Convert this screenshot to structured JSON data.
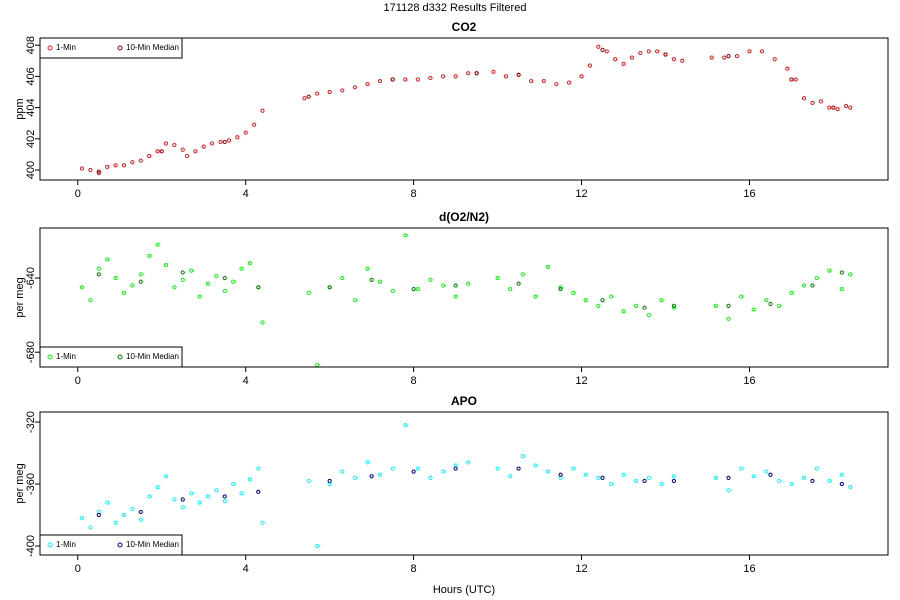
{
  "title": "171128   d332   Results Filtered",
  "chart_data": [
    {
      "type": "scatter",
      "title": "CO2",
      "ylabel": "ppm",
      "legend": "topleft",
      "xlim": [
        -0.9,
        19.3
      ],
      "xticks": [
        0,
        4,
        8,
        12,
        16
      ],
      "ylim": [
        399.36,
        408.46
      ],
      "yticks": [
        400,
        402,
        404,
        406,
        408
      ],
      "series": [
        {
          "name": "1-Min",
          "color": "#e41a1c",
          "x": [
            0.1,
            0.3,
            0.5,
            0.7,
            0.9,
            1.1,
            1.3,
            1.5,
            1.7,
            1.9,
            2.1,
            2.3,
            2.5,
            2.6,
            2.8,
            3.0,
            3.2,
            3.4,
            3.6,
            3.8,
            4.0,
            4.2,
            4.4,
            5.4,
            5.7,
            6.0,
            6.3,
            6.6,
            6.9,
            7.2,
            7.5,
            7.8,
            8.1,
            8.4,
            8.7,
            9.0,
            9.3,
            9.5,
            9.9,
            10.2,
            10.5,
            10.8,
            11.1,
            11.4,
            11.7,
            12.0,
            12.2,
            12.4,
            12.6,
            12.8,
            13.0,
            13.2,
            13.4,
            13.6,
            13.8,
            14.0,
            14.2,
            14.4,
            15.1,
            15.4,
            15.7,
            16.0,
            16.3,
            16.6,
            16.9,
            17.1,
            17.3,
            17.5,
            17.7,
            17.9,
            18.1,
            18.3,
            18.4
          ],
          "values": [
            400.1,
            400.0,
            399.8,
            400.2,
            400.3,
            400.3,
            400.5,
            400.6,
            400.9,
            401.2,
            401.7,
            401.6,
            401.3,
            400.9,
            401.2,
            401.5,
            401.7,
            401.8,
            401.9,
            402.1,
            402.4,
            402.9,
            403.8,
            404.6,
            404.9,
            405.0,
            405.1,
            405.3,
            405.5,
            405.7,
            405.8,
            405.8,
            405.8,
            405.9,
            406.0,
            406.0,
            406.2,
            406.2,
            406.3,
            406.0,
            406.1,
            405.7,
            405.7,
            405.5,
            405.6,
            406.0,
            406.7,
            407.9,
            407.6,
            407.1,
            406.8,
            407.2,
            407.5,
            407.6,
            407.6,
            407.4,
            407.1,
            407.0,
            407.2,
            407.2,
            407.3,
            407.6,
            407.6,
            407.1,
            406.5,
            405.8,
            404.6,
            404.3,
            404.4,
            404.0,
            403.9,
            404.1,
            404.0
          ]
        },
        {
          "name": "10-Min Median",
          "color": "#a00000",
          "x": [
            0.5,
            2.0,
            3.5,
            5.5,
            7.5,
            9.5,
            10.5,
            12.5,
            14,
            15.5,
            17,
            18
          ],
          "values": [
            399.9,
            401.2,
            401.8,
            404.7,
            405.8,
            406.2,
            406.1,
            407.7,
            407.4,
            407.3,
            405.8,
            404.0
          ]
        }
      ]
    },
    {
      "type": "scatter",
      "title": "d(O2/N2)",
      "ylabel": "per meg",
      "legend": "bottomleft",
      "xlim": [
        -0.9,
        19.3
      ],
      "xticks": [
        0,
        4,
        8,
        12,
        16
      ],
      "ylim": [
        -688,
        -613
      ],
      "yticks": [
        -640,
        -680
      ],
      "series": [
        {
          "name": "1-Min",
          "color": "#00ff00",
          "x": [
            0.1,
            0.3,
            0.5,
            0.7,
            0.9,
            1.1,
            1.3,
            1.5,
            1.7,
            1.9,
            2.1,
            2.3,
            2.5,
            2.7,
            2.9,
            3.1,
            3.3,
            3.5,
            3.7,
            3.9,
            4.1,
            4.3,
            4.4,
            5.5,
            5.7,
            6.0,
            6.3,
            6.6,
            6.9,
            7.2,
            7.5,
            7.8,
            8.1,
            8.4,
            8.7,
            9.0,
            9.3,
            10.0,
            10.3,
            10.6,
            10.9,
            11.2,
            11.5,
            11.8,
            12.1,
            12.4,
            12.7,
            13.0,
            13.3,
            13.6,
            13.9,
            14.2,
            15.2,
            15.5,
            15.8,
            16.1,
            16.4,
            16.7,
            17.0,
            17.3,
            17.6,
            17.9,
            18.2,
            18.4
          ],
          "values": [
            -645,
            -652,
            -635,
            -630,
            -640,
            -648,
            -644,
            -638,
            -628,
            -622,
            -633,
            -645,
            -641,
            -636,
            -650,
            -643,
            -639,
            -647,
            -642,
            -635,
            -632,
            -645,
            -664,
            -648,
            -687,
            -645,
            -640,
            -652,
            -635,
            -642,
            -647,
            -617,
            -646,
            -641,
            -644,
            -650,
            -643,
            -640,
            -646,
            -638,
            -650,
            -634,
            -645,
            -648,
            -652,
            -655,
            -650,
            -658,
            -655,
            -660,
            -652,
            -656,
            -655,
            -662,
            -650,
            -657,
            -652,
            -655,
            -648,
            -644,
            -640,
            -636,
            -646,
            -638
          ]
        },
        {
          "name": "10-Min Median",
          "color": "#008000",
          "x": [
            0.5,
            1.5,
            2.5,
            3.5,
            4.3,
            6,
            7,
            8,
            9,
            10.5,
            11.5,
            12.5,
            13.5,
            14.2,
            15.5,
            16.5,
            17.5,
            18.2
          ],
          "values": [
            -638,
            -642,
            -637,
            -640,
            -645,
            -645,
            -641,
            -646,
            -644,
            -643,
            -646,
            -652,
            -656,
            -655,
            -655,
            -654,
            -644,
            -637
          ]
        }
      ]
    },
    {
      "type": "scatter",
      "title": "APO",
      "ylabel": "per meg",
      "xlabel": "Hours (UTC)",
      "legend": "bottomleft",
      "xlim": [
        -0.9,
        19.3
      ],
      "xticks": [
        0,
        4,
        8,
        12,
        16
      ],
      "ylim": [
        -405.8,
        -313.5
      ],
      "yticks": [
        -320,
        -360,
        -400
      ],
      "series": [
        {
          "name": "1-Min",
          "color": "#00ffff",
          "x": [
            0.1,
            0.3,
            0.5,
            0.7,
            0.9,
            1.1,
            1.3,
            1.5,
            1.7,
            1.9,
            2.1,
            2.3,
            2.5,
            2.7,
            2.9,
            3.1,
            3.3,
            3.5,
            3.7,
            3.9,
            4.1,
            4.3,
            4.4,
            5.5,
            5.7,
            6.0,
            6.3,
            6.6,
            6.9,
            7.2,
            7.5,
            7.8,
            8.1,
            8.4,
            8.7,
            9.0,
            9.3,
            10.0,
            10.3,
            10.6,
            10.9,
            11.2,
            11.5,
            11.8,
            12.1,
            12.4,
            12.7,
            13.0,
            13.3,
            13.6,
            13.9,
            14.2,
            15.2,
            15.5,
            15.8,
            16.1,
            16.4,
            16.7,
            17.0,
            17.3,
            17.6,
            17.9,
            18.2,
            18.4
          ],
          "values": [
            -382,
            -388,
            -378,
            -372,
            -385,
            -380,
            -376,
            -383,
            -368,
            -362,
            -355,
            -370,
            -375,
            -366,
            -372,
            -368,
            -364,
            -371,
            -360,
            -366,
            -357,
            -350,
            -385,
            -358,
            -400,
            -360,
            -352,
            -356,
            -346,
            -354,
            -350,
            -322,
            -350,
            -356,
            -352,
            -348,
            -346,
            -350,
            -355,
            -342,
            -348,
            -352,
            -356,
            -350,
            -354,
            -356,
            -360,
            -354,
            -358,
            -356,
            -360,
            -355,
            -356,
            -364,
            -350,
            -355,
            -352,
            -358,
            -360,
            -356,
            -350,
            -358,
            -354,
            -362
          ]
        },
        {
          "name": "10-Min Median",
          "color": "#00008b",
          "x": [
            0.5,
            1.5,
            2.5,
            3.5,
            4.3,
            6,
            7,
            8,
            9,
            10.5,
            11.5,
            12.5,
            13.5,
            14.2,
            15.5,
            16.5,
            17.5,
            18.2
          ],
          "values": [
            -380,
            -378,
            -370,
            -368,
            -365,
            -358,
            -355,
            -352,
            -350,
            -350,
            -354,
            -356,
            -358,
            -358,
            -356,
            -354,
            -358,
            -360
          ]
        }
      ]
    }
  ]
}
